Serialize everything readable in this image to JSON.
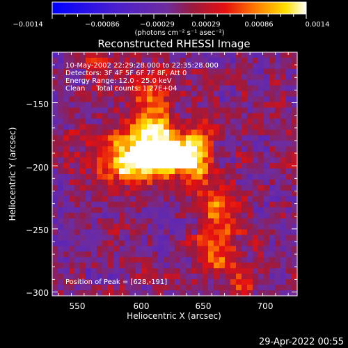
{
  "colorbar": {
    "ticks": [
      "−0.0014",
      "−0.00086",
      "−0.00029",
      "0.00029",
      "0.00086",
      "0.0014"
    ],
    "unit_label": "(photons cm⁻² s⁻¹ asec⁻²)"
  },
  "footer": {
    "timestamp": "29-Apr-2022 00:55"
  },
  "chart_data": {
    "type": "heatmap",
    "title": "Reconstructed RHESSI Image",
    "xlabel": "Heliocentric X (arcsec)",
    "ylabel": "Heliocentric Y (arcsec)",
    "xlim": [
      530,
      722
    ],
    "ylim": [
      -303,
      -110
    ],
    "x_ticks": [
      550,
      600,
      650,
      700
    ],
    "y_ticks": [
      -150,
      -200,
      -250,
      -300
    ],
    "y_tick_labels": [
      "−150",
      "−200",
      "−250",
      "−300"
    ],
    "color_scale": [
      -0.0014,
      0.0014
    ],
    "colormap": "blue-purple-red-yellow-white",
    "info_lines": [
      "10-May-2002 22:29:28.000 to 22:35:28.000",
      "Detectors: 3F 4F 5F 6F 7F 8F, Att 0",
      "Energy Range: 12.0 - 25.0 keV",
      "Clean     Total counts: 1.27E+04"
    ],
    "peak_label": "Position of Peak = [628,-191]",
    "sources": [
      {
        "x": 600,
        "y": -187,
        "sx": 22,
        "sy": 14,
        "amp": 0.00125
      },
      {
        "x": 625,
        "y": -192,
        "sx": 16,
        "sy": 11,
        "amp": 0.0014
      },
      {
        "x": 607,
        "y": -155,
        "sx": 12,
        "sy": 20,
        "amp": 0.00075
      },
      {
        "x": 582,
        "y": -202,
        "sx": 12,
        "sy": 9,
        "amp": 0.0006
      },
      {
        "x": 647,
        "y": -195,
        "sx": 7,
        "sy": 24,
        "amp": 0.0005
      },
      {
        "x": 662,
        "y": -233,
        "sx": 10,
        "sy": 12,
        "amp": 0.00085
      },
      {
        "x": 660,
        "y": -268,
        "sx": 14,
        "sy": 14,
        "amp": 0.00075
      },
      {
        "x": 680,
        "y": -290,
        "sx": 10,
        "sy": 8,
        "amp": 0.0006
      },
      {
        "x": 565,
        "y": -115,
        "sx": 8,
        "sy": 12,
        "amp": 0.00035
      },
      {
        "x": 548,
        "y": -178,
        "sx": 7,
        "sy": 7,
        "amp": 0.0003
      }
    ]
  }
}
